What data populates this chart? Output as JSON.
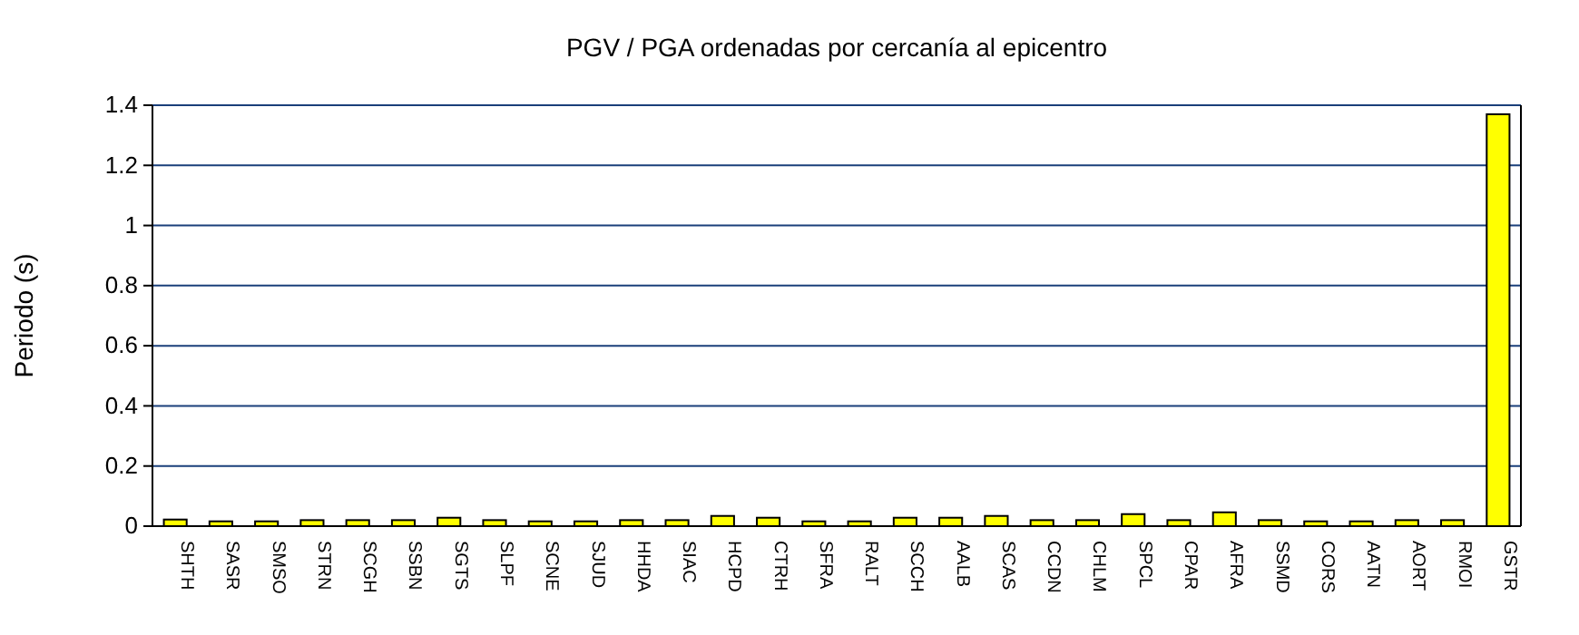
{
  "chart_data": {
    "type": "bar",
    "title": "PGV / PGA ordenadas por cercanía al epicentro",
    "ylabel": "Periodo (s)",
    "categories": [
      "SHTH",
      "SASR",
      "SMSO",
      "STRN",
      "SCGH",
      "SSBN",
      "SGTS",
      "SLPF",
      "SCNE",
      "SJUD",
      "HHDA",
      "SIAC",
      "HCPD",
      "CTRH",
      "SFRA",
      "RALT",
      "SCCH",
      "AALB",
      "SCAS",
      "CCDN",
      "CHLM",
      "SPCL",
      "CPAR",
      "AFRA",
      "SSMD",
      "CORS",
      "AATN",
      "AORT",
      "RMOI",
      "GSTR"
    ],
    "values": [
      0.022,
      0.016,
      0.016,
      0.02,
      0.02,
      0.02,
      0.028,
      0.02,
      0.016,
      0.016,
      0.02,
      0.02,
      0.034,
      0.028,
      0.016,
      0.016,
      0.028,
      0.028,
      0.034,
      0.02,
      0.02,
      0.04,
      0.02,
      0.046,
      0.02,
      0.016,
      0.016,
      0.02,
      0.02,
      1.37
    ],
    "color": "#ffff00",
    "ylim": [
      0,
      1.4
    ],
    "yticks": [
      0,
      0.2,
      0.4,
      0.6,
      0.8,
      1,
      1.2,
      1.4
    ],
    "grid": "y"
  }
}
